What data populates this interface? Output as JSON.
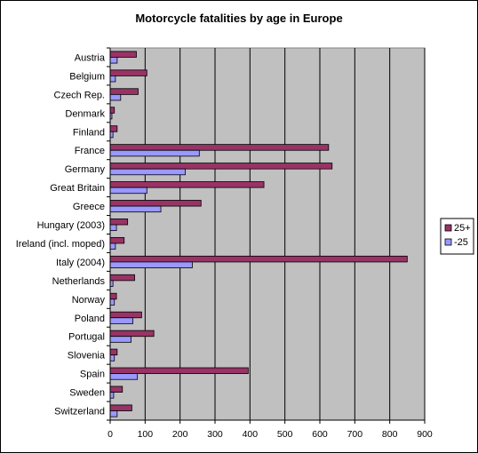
{
  "chart_data": {
    "type": "bar",
    "orientation": "horizontal",
    "title": "Motorcycle fatalities by age in Europe",
    "xlabel": "",
    "ylabel": "",
    "xlim": [
      0,
      900
    ],
    "xticks": [
      0,
      100,
      200,
      300,
      400,
      500,
      600,
      700,
      800,
      900
    ],
    "grid": true,
    "legend_position": "right",
    "categories": [
      "Austria",
      "Belgium",
      "Czech Rep.",
      "Denmark",
      "Finland",
      "France",
      "Germany",
      "Great Britain",
      "Greece",
      "Hungary (2003)",
      "Ireland (incl. moped)",
      "Italy (2004)",
      "Netherlands",
      "Norway",
      "Poland",
      "Portugal",
      "Slovenia",
      "Spain",
      "Sweden",
      "Switzerland"
    ],
    "series": [
      {
        "name": "25+",
        "color": "#993366",
        "values": [
          75,
          105,
          80,
          12,
          20,
          625,
          635,
          440,
          260,
          50,
          40,
          850,
          70,
          18,
          90,
          125,
          20,
          395,
          35,
          62
        ]
      },
      {
        "name": "-25",
        "color": "#9999ff",
        "values": [
          20,
          15,
          30,
          5,
          8,
          255,
          215,
          105,
          145,
          18,
          15,
          235,
          8,
          12,
          65,
          60,
          12,
          78,
          10,
          20
        ]
      }
    ],
    "colors": {
      "plot_background": "#c0c0c0",
      "gridline": "#000000"
    }
  }
}
